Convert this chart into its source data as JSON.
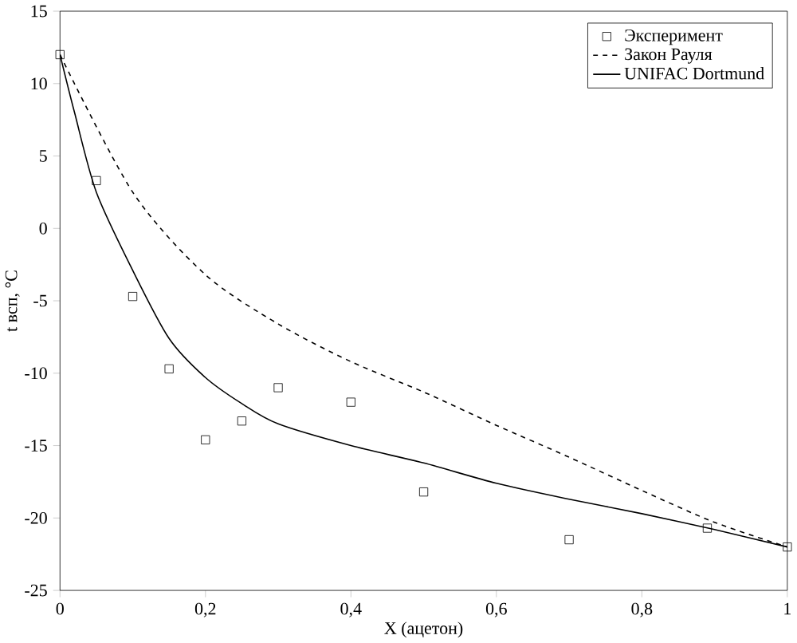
{
  "chart_data": {
    "type": "line",
    "xlabel": "X (ацетон)",
    "ylabel": "t всп, °C",
    "xlim": [
      0,
      1
    ],
    "ylim": [
      -25,
      15
    ],
    "xticks": [
      0,
      {
        "value": 0.2,
        "label": "0,2"
      },
      {
        "value": 0.4,
        "label": "0,4"
      },
      {
        "value": 0.6,
        "label": "0,6"
      },
      {
        "value": 0.8,
        "label": "0,8"
      },
      1
    ],
    "yticks": [
      -25,
      -20,
      -15,
      -10,
      -5,
      0,
      5,
      10,
      15
    ],
    "grid": false,
    "legend": "top right",
    "series": [
      {
        "name": "Эксперимент",
        "type": "scatter",
        "marker": "square",
        "color": "#000000",
        "x": [
          0,
          0.05,
          0.1,
          0.15,
          0.2,
          0.25,
          0.3,
          0.4,
          0.5,
          0.7,
          0.89,
          1
        ],
        "values": [
          12,
          3.3,
          -4.7,
          -9.7,
          -14.6,
          -13.3,
          -11,
          -12,
          -18.2,
          -21.5,
          -20.7,
          -22
        ]
      },
      {
        "name": "Закон Рауля",
        "type": "line",
        "line_style": "dashed",
        "color": "#000000",
        "x": [
          0,
          0.1,
          0.2,
          0.3,
          0.4,
          0.5,
          0.6,
          0.7,
          0.8,
          0.9,
          1
        ],
        "values": [
          12,
          2.5,
          -3.2,
          -6.6,
          -9.2,
          -11.3,
          -13.6,
          -15.8,
          -18.1,
          -20.3,
          -22
        ]
      },
      {
        "name": "UNIFAC Dortmund",
        "line_style": "solid",
        "color": "#000000",
        "x": [
          0,
          0.02,
          0.05,
          0.1,
          0.15,
          0.2,
          0.25,
          0.3,
          0.4,
          0.5,
          0.6,
          0.7,
          0.8,
          0.9,
          1
        ],
        "values": [
          12,
          8,
          2.5,
          -2.9,
          -7.6,
          -10.3,
          -12.1,
          -13.5,
          -15,
          -16.2,
          -17.6,
          -18.7,
          -19.7,
          -20.8,
          -22
        ]
      }
    ]
  }
}
